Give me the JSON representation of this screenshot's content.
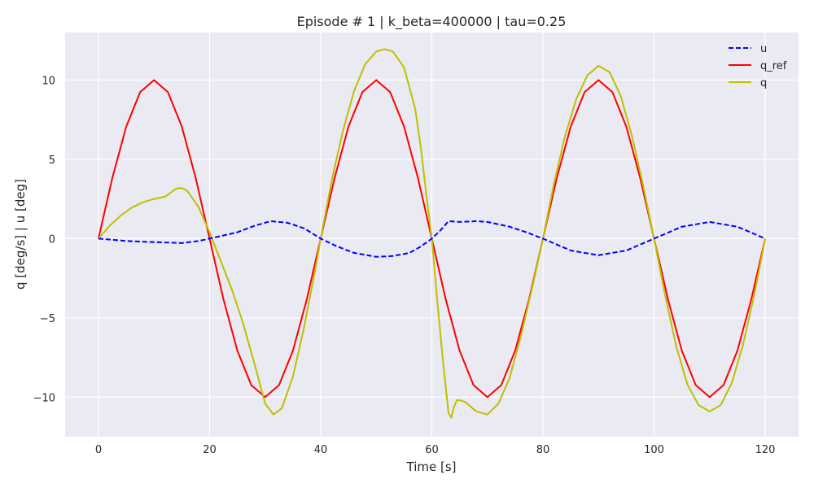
{
  "chart_data": {
    "type": "line",
    "title": "Episode # 1 | k_beta=400000 | tau=0.25",
    "xlabel": "Time [s]",
    "ylabel": "q [deg/s]  |  u [deg]",
    "xlim": [
      -6,
      126
    ],
    "ylim": [
      -12.5,
      13
    ],
    "xticks": [
      0,
      20,
      40,
      60,
      80,
      100,
      120
    ],
    "yticks": [
      -10,
      -5,
      0,
      5,
      10
    ],
    "ytick_labels": [
      "−10",
      "−5",
      "0",
      "5",
      "10"
    ],
    "grid": true,
    "legend_position": "top-right",
    "colors": {
      "background": "#eaeaf2",
      "grid": "#ffffff"
    },
    "series": [
      {
        "name": "u",
        "color": "#0000ff",
        "style": "dashed",
        "points": [
          [
            0,
            0
          ],
          [
            5,
            -0.15
          ],
          [
            10,
            -0.22
          ],
          [
            15,
            -0.28
          ],
          [
            18,
            -0.15
          ],
          [
            20,
            0
          ],
          [
            25,
            0.4
          ],
          [
            28,
            0.8
          ],
          [
            31,
            1.1
          ],
          [
            34,
            1.0
          ],
          [
            37,
            0.65
          ],
          [
            40,
            0
          ],
          [
            43,
            -0.5
          ],
          [
            46,
            -0.9
          ],
          [
            50,
            -1.15
          ],
          [
            53,
            -1.1
          ],
          [
            56,
            -0.9
          ],
          [
            58,
            -0.5
          ],
          [
            60,
            0
          ],
          [
            61.5,
            0.5
          ],
          [
            63,
            1.1
          ],
          [
            65,
            1.05
          ],
          [
            68,
            1.1
          ],
          [
            70,
            1.05
          ],
          [
            74,
            0.75
          ],
          [
            77,
            0.4
          ],
          [
            80,
            0
          ],
          [
            85,
            -0.75
          ],
          [
            90,
            -1.05
          ],
          [
            95,
            -0.75
          ],
          [
            100,
            0
          ],
          [
            105,
            0.75
          ],
          [
            110,
            1.05
          ],
          [
            115,
            0.75
          ],
          [
            120,
            0
          ]
        ]
      },
      {
        "name": "q_ref",
        "color": "#ff0000",
        "style": "solid",
        "points": [
          [
            0,
            0
          ],
          [
            2.5,
            3.83
          ],
          [
            5,
            7.07
          ],
          [
            7.5,
            9.24
          ],
          [
            10,
            10
          ],
          [
            12.5,
            9.24
          ],
          [
            15,
            7.07
          ],
          [
            17.5,
            3.83
          ],
          [
            20,
            0
          ],
          [
            22.5,
            -3.83
          ],
          [
            25,
            -7.07
          ],
          [
            27.5,
            -9.24
          ],
          [
            30,
            -10
          ],
          [
            32.5,
            -9.24
          ],
          [
            35,
            -7.07
          ],
          [
            37.5,
            -3.83
          ],
          [
            40,
            0
          ],
          [
            42.5,
            3.83
          ],
          [
            45,
            7.07
          ],
          [
            47.5,
            9.24
          ],
          [
            50,
            10
          ],
          [
            52.5,
            9.24
          ],
          [
            55,
            7.07
          ],
          [
            57.5,
            3.83
          ],
          [
            60,
            0
          ],
          [
            62.5,
            -3.83
          ],
          [
            65,
            -7.07
          ],
          [
            67.5,
            -9.24
          ],
          [
            70,
            -10
          ],
          [
            72.5,
            -9.24
          ],
          [
            75,
            -7.07
          ],
          [
            77.5,
            -3.83
          ],
          [
            80,
            0
          ],
          [
            82.5,
            3.83
          ],
          [
            85,
            7.07
          ],
          [
            87.5,
            9.24
          ],
          [
            90,
            10
          ],
          [
            92.5,
            9.24
          ],
          [
            95,
            7.07
          ],
          [
            97.5,
            3.83
          ],
          [
            100,
            0
          ],
          [
            102.5,
            -3.83
          ],
          [
            105,
            -7.07
          ],
          [
            107.5,
            -9.24
          ],
          [
            110,
            -10
          ],
          [
            112.5,
            -9.24
          ],
          [
            115,
            -7.07
          ],
          [
            117.5,
            -3.83
          ],
          [
            120,
            0
          ]
        ]
      },
      {
        "name": "q",
        "color": "#bfbf00",
        "style": "solid",
        "points": [
          [
            0,
            0
          ],
          [
            2,
            0.8
          ],
          [
            4,
            1.45
          ],
          [
            6,
            1.95
          ],
          [
            8,
            2.3
          ],
          [
            10,
            2.5
          ],
          [
            12,
            2.65
          ],
          [
            14,
            3.15
          ],
          [
            15,
            3.2
          ],
          [
            16,
            3.0
          ],
          [
            18,
            2.0
          ],
          [
            20,
            0.4
          ],
          [
            22,
            -1.4
          ],
          [
            24,
            -3.2
          ],
          [
            26,
            -5.3
          ],
          [
            28,
            -7.8
          ],
          [
            30,
            -10.4
          ],
          [
            31.5,
            -11.1
          ],
          [
            33,
            -10.7
          ],
          [
            35,
            -8.7
          ],
          [
            37,
            -5.6
          ],
          [
            39,
            -2.0
          ],
          [
            40,
            0
          ],
          [
            42,
            3.7
          ],
          [
            44,
            6.8
          ],
          [
            46,
            9.3
          ],
          [
            48,
            11.0
          ],
          [
            50,
            11.8
          ],
          [
            51.5,
            11.95
          ],
          [
            53,
            11.8
          ],
          [
            55,
            10.8
          ],
          [
            57,
            8.2
          ],
          [
            58,
            5.8
          ],
          [
            59,
            2.8
          ],
          [
            60,
            0
          ],
          [
            61,
            -4.0
          ],
          [
            62,
            -7.7
          ],
          [
            63,
            -11.0
          ],
          [
            63.5,
            -11.3
          ],
          [
            64,
            -10.6
          ],
          [
            64.5,
            -10.2
          ],
          [
            65,
            -10.2
          ],
          [
            66,
            -10.3
          ],
          [
            68,
            -10.9
          ],
          [
            70,
            -11.1
          ],
          [
            72,
            -10.4
          ],
          [
            74,
            -8.8
          ],
          [
            76,
            -6.2
          ],
          [
            78,
            -3.2
          ],
          [
            80,
            0
          ],
          [
            82,
            3.5
          ],
          [
            84,
            6.5
          ],
          [
            86,
            8.8
          ],
          [
            88,
            10.3
          ],
          [
            90,
            10.9
          ],
          [
            92,
            10.5
          ],
          [
            94,
            9.0
          ],
          [
            96,
            6.5
          ],
          [
            98,
            3.4
          ],
          [
            100,
            0
          ],
          [
            102,
            -3.6
          ],
          [
            104,
            -6.8
          ],
          [
            106,
            -9.2
          ],
          [
            108,
            -10.5
          ],
          [
            110,
            -10.9
          ],
          [
            112,
            -10.5
          ],
          [
            114,
            -9.1
          ],
          [
            116,
            -6.7
          ],
          [
            118,
            -3.6
          ],
          [
            120,
            0
          ]
        ]
      }
    ]
  }
}
